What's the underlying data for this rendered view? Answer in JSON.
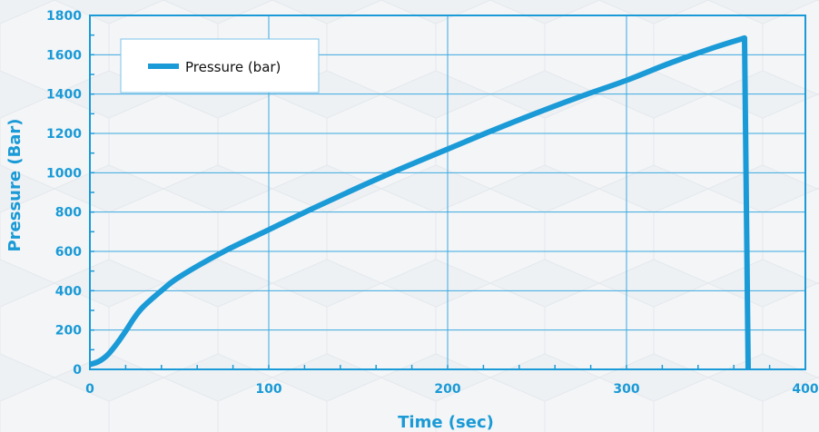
{
  "chart_data": {
    "type": "line",
    "title": "",
    "xlabel": "Time (sec)",
    "ylabel": "Pressure (Bar)",
    "xlim": [
      0,
      400
    ],
    "ylim": [
      0,
      1800
    ],
    "x_ticks": [
      0,
      100,
      200,
      300,
      400
    ],
    "y_ticks": [
      0,
      200,
      400,
      600,
      800,
      1000,
      1200,
      1400,
      1600,
      1800
    ],
    "grid": true,
    "legend_position": "top-left",
    "colors": {
      "series": "#1a9ad6",
      "axis": "#1a9ad6",
      "grid": "#3aa9df"
    },
    "series": [
      {
        "name": "Pressure (bar)",
        "x": [
          0,
          5,
          10,
          15,
          20,
          25,
          30,
          40,
          50,
          75,
          100,
          125,
          150,
          175,
          200,
          225,
          250,
          275,
          300,
          325,
          350,
          366,
          368
        ],
        "y": [
          25,
          40,
          75,
          130,
          195,
          265,
          320,
          400,
          470,
          600,
          710,
          820,
          925,
          1025,
          1120,
          1215,
          1305,
          1390,
          1470,
          1560,
          1640,
          1685,
          0
        ]
      }
    ]
  }
}
